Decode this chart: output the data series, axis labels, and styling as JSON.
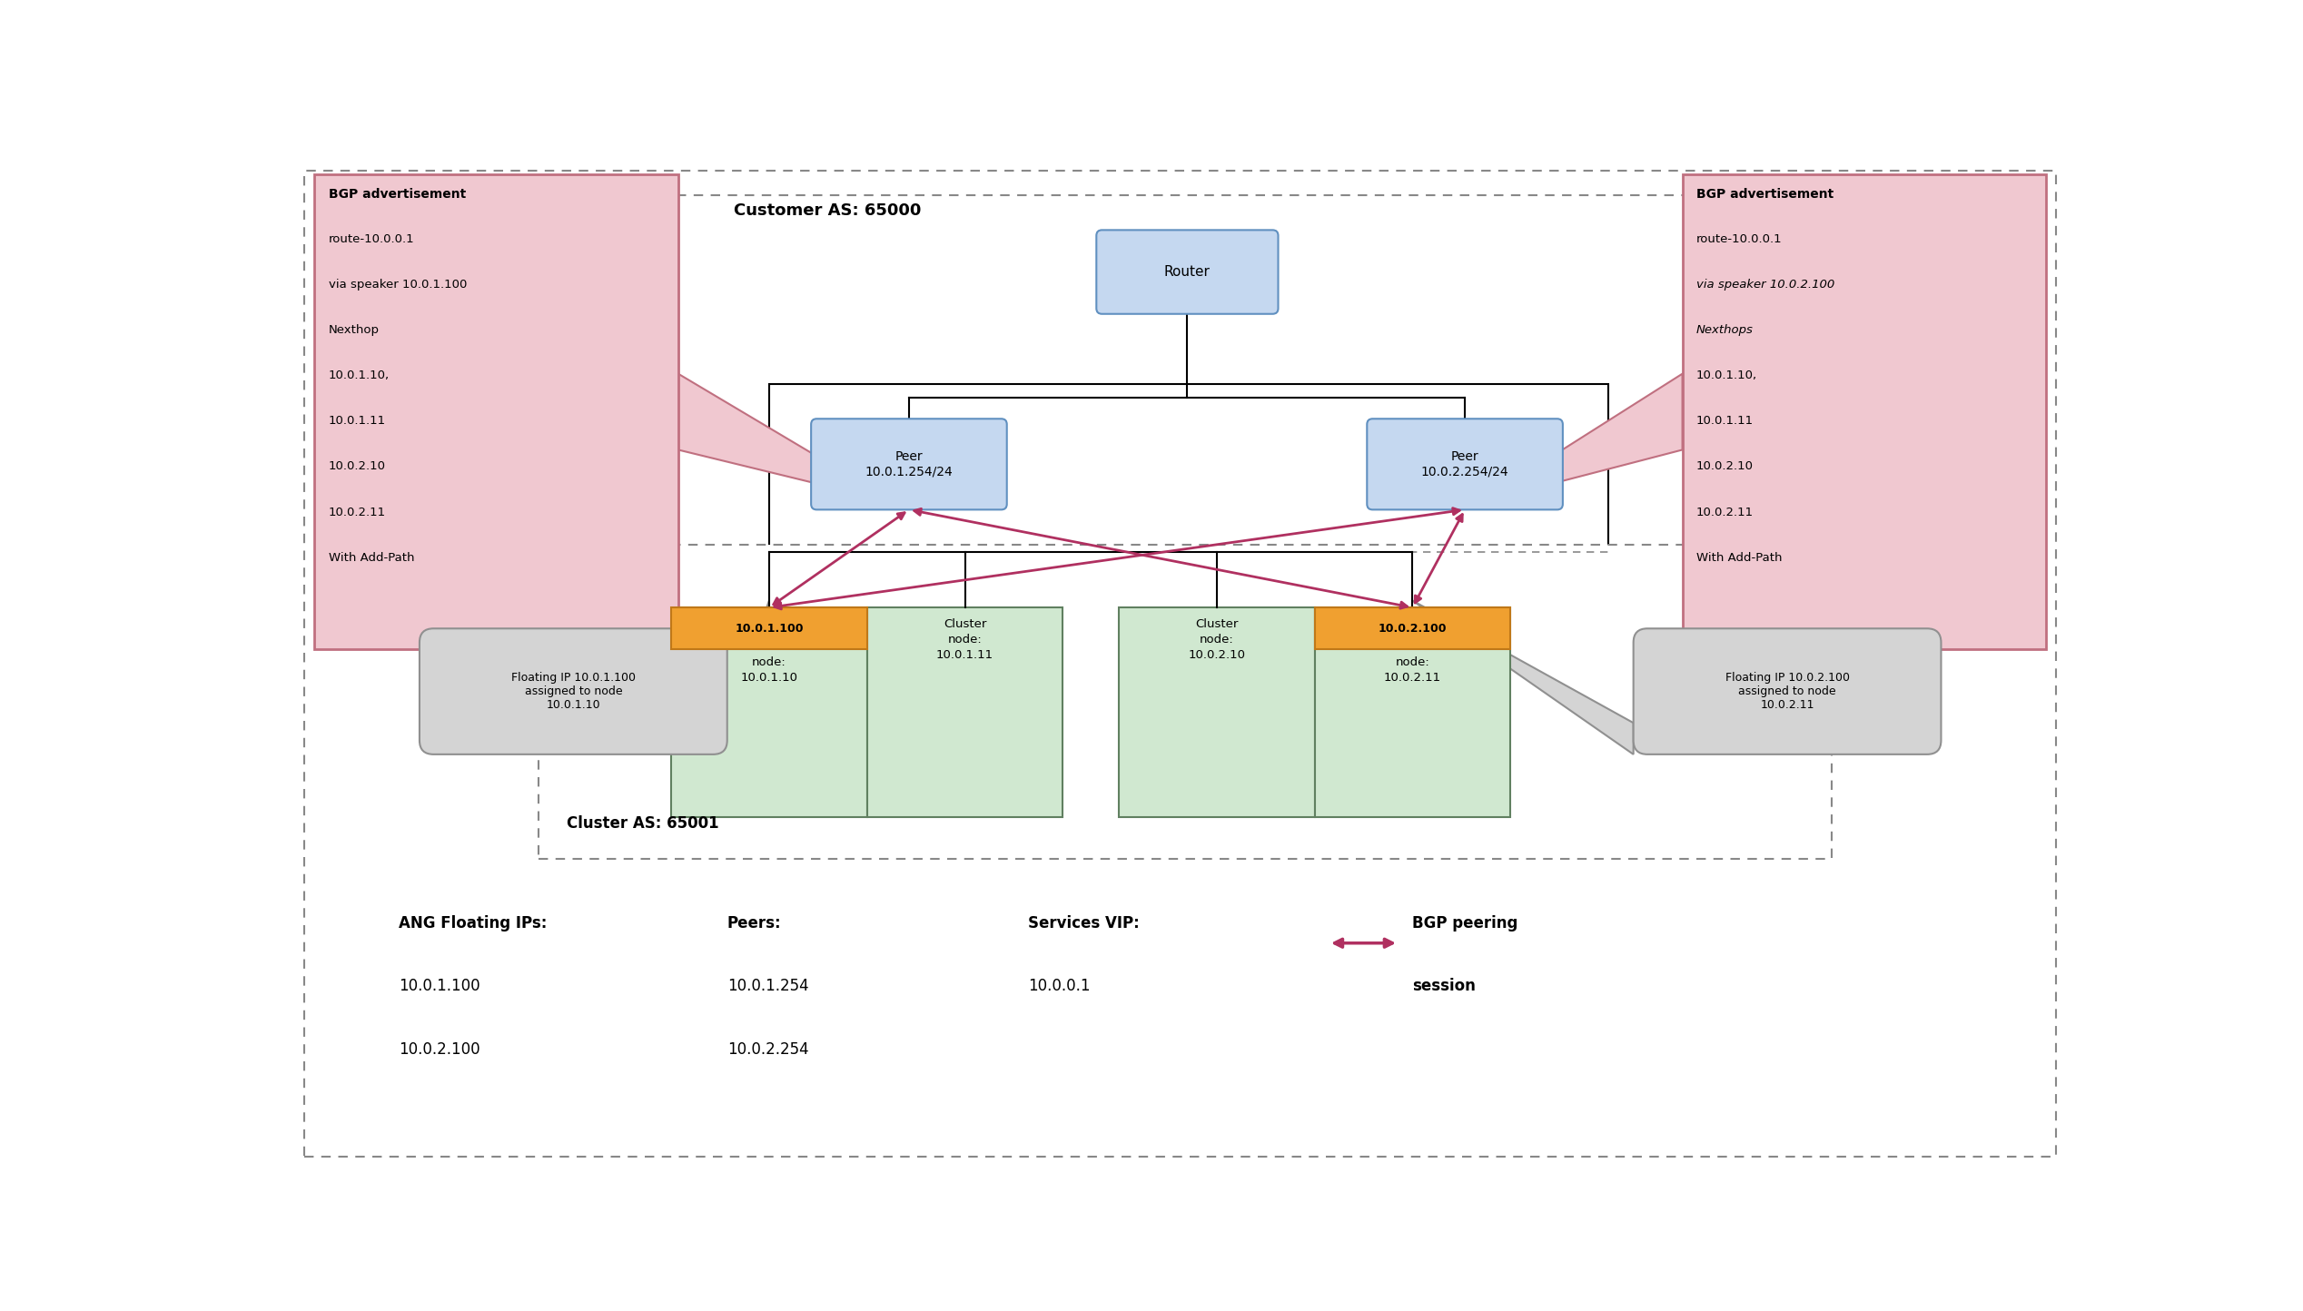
{
  "fig_width": 25.36,
  "fig_height": 14.44,
  "bg_color": "#ffffff",
  "dashed_border_color": "#888888",
  "customer_as_label": "Customer AS: 65000",
  "cluster_as_label": "Cluster AS: 65001",
  "router_label": "Router",
  "peer_left_label": "Peer\n10.0.1.254/24",
  "peer_right_label": "Peer\n10.0.2.254/24",
  "floating_left_label": "Floating IP 10.0.1.100\nassigned to node\n10.0.1.10",
  "floating_right_label": "Floating IP 10.0.2.100\nassigned to node\n10.0.2.11",
  "bgp_left_title": "BGP advertisement",
  "bgp_left_line1": "route-10.0.0.1",
  "bgp_left_line2": "via speaker 10.0.1.100",
  "bgp_left_line3": "Nexthop",
  "bgp_left_line4": "10.0.1.10,",
  "bgp_left_line5": "10.0.1.11",
  "bgp_left_line6": "10.0.2.10",
  "bgp_left_line7": "10.0.2.11",
  "bgp_left_line8": "With Add-Path",
  "bgp_right_title": "BGP advertisement",
  "bgp_right_line1": "route-10.0.0.1",
  "bgp_right_line2_italic": "via speaker 10.0.2.100",
  "bgp_right_line3_italic": "Nexthops",
  "bgp_right_line4": "10.0.1.10,",
  "bgp_right_line5": "10.0.1.11",
  "bgp_right_line6": "10.0.2.10",
  "bgp_right_line7": "10.0.2.11",
  "bgp_right_line8": "With Add-Path",
  "node1_ip": "10.0.1.100",
  "node1_text": "node:\n10.0.1.10",
  "node2_text": "Cluster\nnode:\n10.0.1.11",
  "node3_text": "Cluster\nnode:\n10.0.2.10",
  "node4_ip": "10.0.2.100",
  "node4_text": "node:\n10.0.2.11",
  "legend_line1a": "ANG Floating IPs:",
  "legend_line1b": "Peers:",
  "legend_line1c": "Services VIP:",
  "legend_line1d": "BGP peering",
  "legend_line2a": "10.0.1.100",
  "legend_line2b": "10.0.1.254",
  "legend_line2c": "10.0.0.1",
  "legend_line2d": "session",
  "legend_line3a": "10.0.2.100",
  "legend_line3b": "10.0.2.254",
  "blue_box_color": "#c5d8f0",
  "blue_box_edge": "#6090c0",
  "pink_box_color": "#f0c8d0",
  "pink_box_edge": "#c07080",
  "green_box_color": "#d0e8d0",
  "green_box_edge": "#608060",
  "orange_bar_color": "#f0a030",
  "orange_bar_edge": "#c07818",
  "gray_box_color": "#d4d4d4",
  "gray_box_edge": "#909090",
  "arrow_color": "#b03060",
  "black": "#000000"
}
